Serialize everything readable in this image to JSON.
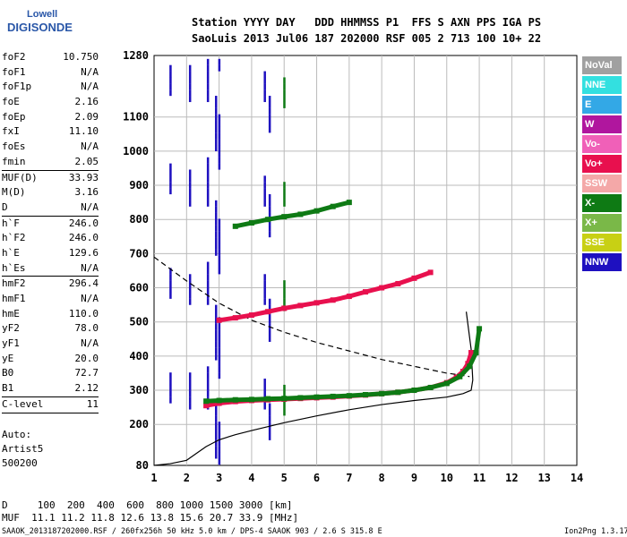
{
  "logo": {
    "top": "Lowell",
    "bottom": "DIGISONDE"
  },
  "header": {
    "line1": "Station YYYY DAY   DDD HHMMSS P1  FFS S AXN PPS IGA PS",
    "line2": "SaoLuis 2013 Jul06 187 202000 RSF 005 2 713 100 10+ 22"
  },
  "params": [
    {
      "name": "foF2",
      "value": "10.750"
    },
    {
      "name": "foF1",
      "value": "N/A"
    },
    {
      "name": "foF1p",
      "value": "N/A"
    },
    {
      "name": "foE",
      "value": "2.16"
    },
    {
      "name": "foEp",
      "value": "2.09"
    },
    {
      "name": "fxI",
      "value": "11.10"
    },
    {
      "name": "foEs",
      "value": "N/A"
    },
    {
      "name": "fmin",
      "value": "2.05",
      "sep": true
    },
    {
      "name": "MUF(D)",
      "value": "33.93"
    },
    {
      "name": "M(D)",
      "value": "3.16"
    },
    {
      "name": "D",
      "value": "N/A",
      "sep": true
    },
    {
      "name": "h`F",
      "value": "246.0"
    },
    {
      "name": "h`F2",
      "value": "246.0"
    },
    {
      "name": "h`E",
      "value": "129.6"
    },
    {
      "name": "h`Es",
      "value": "N/A",
      "sep": true
    },
    {
      "name": "hmF2",
      "value": "296.4"
    },
    {
      "name": "hmF1",
      "value": "N/A"
    },
    {
      "name": "hmE",
      "value": "110.0"
    },
    {
      "name": "yF2",
      "value": "78.0"
    },
    {
      "name": "yF1",
      "value": "N/A"
    },
    {
      "name": "yE",
      "value": "20.0"
    },
    {
      "name": "B0",
      "value": "72.7"
    },
    {
      "name": "B1",
      "value": "2.12",
      "sep": true
    },
    {
      "name": "C-level",
      "value": "11",
      "sep": true
    }
  ],
  "autoscale": {
    "line1": "Auto:",
    "line2": "Artist5",
    "line3": "500200"
  },
  "legend": [
    {
      "label": "NoVal",
      "color": "#a0a0a0"
    },
    {
      "label": "NNE",
      "color": "#33e0e0"
    },
    {
      "label": "E",
      "color": "#33a8e6"
    },
    {
      "label": "W",
      "color": "#b0169e"
    },
    {
      "label": "Vo-",
      "color": "#f060b8"
    },
    {
      "label": "Vo+",
      "color": "#e8104e"
    },
    {
      "label": "SSW",
      "color": "#f4a8a8"
    },
    {
      "label": "X-",
      "color": "#0e7a14"
    },
    {
      "label": "X+",
      "color": "#7ab848"
    },
    {
      "label": "SSE",
      "color": "#c8d014"
    },
    {
      "label": "NNW",
      "color": "#1e10c0"
    }
  ],
  "footer": {
    "d_row": "D     100  200  400  600  800 1000 1500 3000 [km]",
    "muf_row": "MUF  11.1 11.2 11.8 12.6 13.8 15.6 20.7 33.9 [MHz]",
    "info": "SAAOK_2013187202000.RSF / 260fx256h 50 kHz 5.0 km / DPS-4 SAAOK 903 / 2.6 S 315.8 E",
    "version": "Ion2Png 1.3.17"
  },
  "chart_data": {
    "type": "scatter",
    "xlim": [
      1,
      14
    ],
    "ylim": [
      80,
      1280
    ],
    "x_ticks": [
      "1",
      "2",
      "3",
      "4",
      "5",
      "6",
      "7",
      "8",
      "9",
      "10",
      "11",
      "12",
      "13",
      "14"
    ],
    "y_ticks": [
      "80",
      "200",
      "300",
      "400",
      "500",
      "600",
      "700",
      "800",
      "900",
      "1000",
      "1100",
      "1280"
    ],
    "grid": true,
    "legend_position": "right",
    "series": [
      {
        "name": "Vo+",
        "color": "#e8104e",
        "x": [
          2.6,
          3,
          3.5,
          4,
          4.5,
          5,
          5.5,
          6,
          6.5,
          7,
          7.5,
          8,
          8.5,
          9,
          9.5,
          10,
          10.3,
          10.5,
          10.65,
          10.75
        ],
        "y": [
          255,
          262,
          267,
          270,
          272,
          274,
          276,
          278,
          280,
          283,
          286,
          290,
          294,
          300,
          308,
          322,
          338,
          355,
          378,
          410
        ]
      },
      {
        "name": "X-",
        "color": "#0e7a14",
        "x": [
          2.6,
          3,
          3.5,
          4,
          4.5,
          5,
          5.5,
          6,
          6.5,
          7,
          7.5,
          8,
          8.5,
          9,
          9.5,
          10,
          10.4,
          10.7,
          10.9,
          11
        ],
        "y": [
          268,
          270,
          272,
          273,
          275,
          276,
          278,
          280,
          282,
          284,
          287,
          290,
          294,
          300,
          308,
          320,
          340,
          370,
          410,
          480
        ]
      },
      {
        "name": "Vo+ (2F)",
        "color": "#e8104e",
        "x": [
          3,
          3.5,
          4,
          4.5,
          5,
          5.5,
          6,
          6.5,
          7,
          7.5,
          8,
          8.5,
          9,
          9.5
        ],
        "y": [
          505,
          512,
          520,
          530,
          540,
          548,
          556,
          564,
          575,
          588,
          600,
          612,
          628,
          645
        ]
      },
      {
        "name": "X- (3F)",
        "color": "#0e7a14",
        "x": [
          3.5,
          4,
          4.5,
          5,
          5.5,
          6,
          6.5,
          7
        ],
        "y": [
          780,
          790,
          800,
          808,
          815,
          825,
          838,
          850
        ]
      }
    ],
    "profile_curve": {
      "x": [
        1,
        1.5,
        2,
        2.3,
        2.6,
        3,
        3.5,
        4,
        5,
        6,
        7,
        8,
        9,
        10,
        10.5,
        10.75,
        10.8,
        10.75,
        10.6
      ],
      "y": [
        80,
        85,
        95,
        115,
        135,
        155,
        170,
        182,
        205,
        225,
        243,
        258,
        270,
        280,
        290,
        300,
        330,
        420,
        530
      ]
    },
    "dashed_curve": {
      "x": [
        1,
        2,
        3,
        4,
        5,
        6,
        7,
        8,
        9,
        10,
        10.4,
        10.7
      ],
      "y": [
        690,
        620,
        555,
        505,
        470,
        440,
        415,
        390,
        370,
        350,
        345,
        340
      ]
    }
  }
}
